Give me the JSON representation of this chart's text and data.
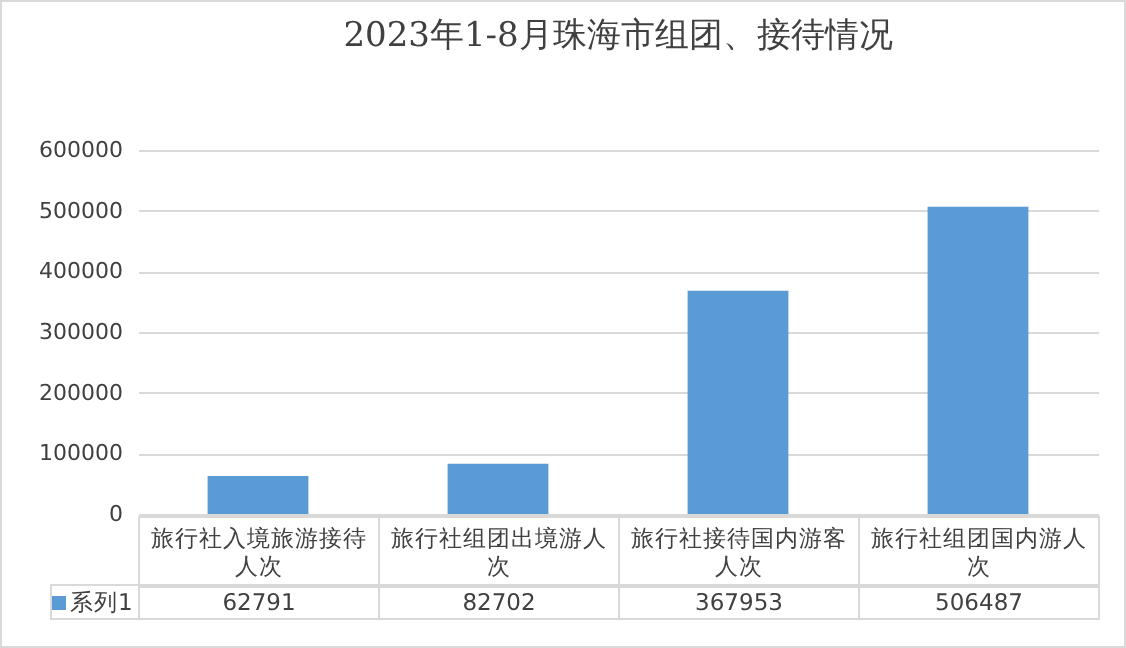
{
  "chart_data": {
    "type": "bar",
    "title": "2023年1-8月珠海市组团、接待情况",
    "categories": [
      "旅行社入境旅游接待人次",
      "旅行社组团出境游人次",
      "旅行社接待国内游客人次",
      "旅行社组团国内游人次"
    ],
    "series": [
      {
        "name": "系列1",
        "color": "#5b9bd5",
        "values": [
          62791,
          82702,
          367953,
          506487
        ]
      }
    ],
    "ylim": [
      0,
      600000
    ],
    "yticks": [
      0,
      100000,
      200000,
      300000,
      400000,
      500000,
      600000
    ],
    "grid": "y",
    "legend": "bottom",
    "data_labels": true
  }
}
